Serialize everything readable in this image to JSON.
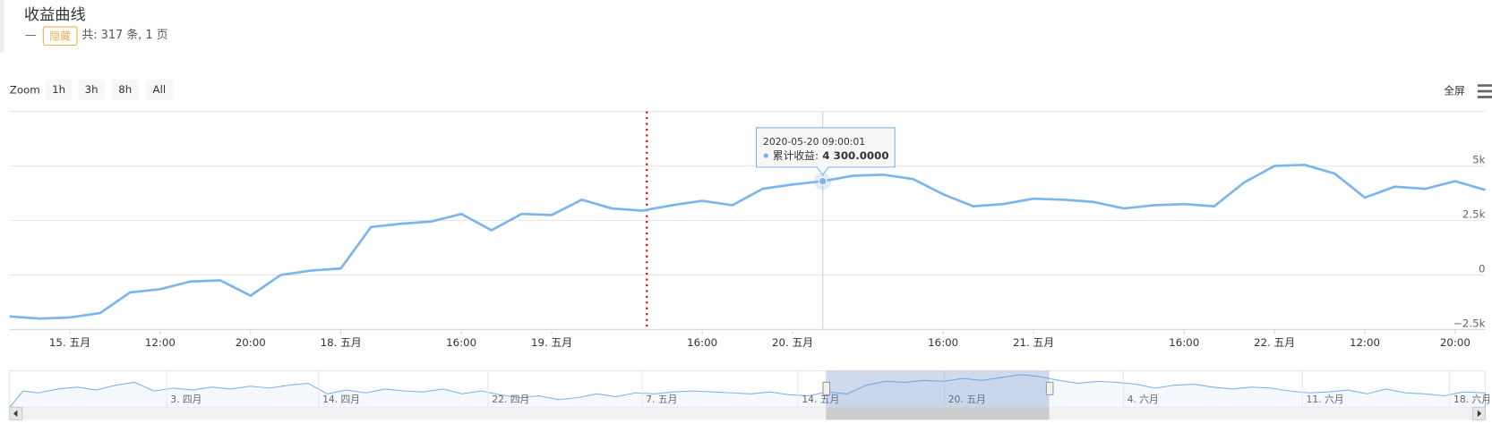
{
  "header": {
    "title": "收益曲线",
    "collapse": "—",
    "hide_button": "隐藏",
    "summary": "共: 317 条, 1 页"
  },
  "toolbar": {
    "zoom_label": "Zoom",
    "zoom_buttons": [
      "1h",
      "3h",
      "8h",
      "All"
    ],
    "fullscreen": "全屏"
  },
  "chart_data": {
    "type": "line",
    "categories": [
      null,
      null,
      "15. 五月",
      null,
      null,
      "12:00",
      null,
      null,
      "20:00",
      null,
      null,
      "18. 五月",
      null,
      null,
      null,
      "16:00",
      null,
      null,
      "19. 五月",
      null,
      null,
      null,
      null,
      "16:00",
      null,
      null,
      "20. 五月",
      null,
      null,
      null,
      null,
      "16:00",
      null,
      null,
      "21. 五月",
      null,
      null,
      null,
      null,
      "16:00",
      null,
      null,
      "22. 五月",
      null,
      null,
      "12:00",
      null,
      null,
      "20:00",
      null
    ],
    "series": [
      {
        "name": "累计收益",
        "color": "#7cb5ec",
        "values": [
          -1900,
          -2000,
          -1950,
          -1750,
          -800,
          -650,
          -300,
          -250,
          -950,
          0,
          200,
          300,
          2200,
          2350,
          2450,
          2800,
          2050,
          2800,
          2750,
          3450,
          3050,
          2950,
          3200,
          3400,
          3200,
          3950,
          4150,
          4300,
          4550,
          4600,
          4400,
          3700,
          3150,
          3250,
          3500,
          3450,
          3350,
          3050,
          3200,
          3250,
          3150,
          4250,
          5000,
          5050,
          4650,
          3550,
          4050,
          3950,
          4300,
          3900
        ]
      }
    ],
    "ylim": [
      -2500,
      7500
    ],
    "yticks": [
      {
        "value": -2500,
        "label": "−2.5k"
      },
      0,
      {
        "value": 2500,
        "label": "2.5k"
      },
      {
        "value": 5000,
        "label": "5k"
      }
    ],
    "grid": true,
    "tooltip": {
      "x": "2020-05-20 09:00:01",
      "point": 27,
      "separator": ":",
      "value_label": "4 300.0000"
    },
    "navigator_labels": [
      "3. 四月",
      "14. 四月",
      "22. 四月",
      "7. 五月",
      "14. 五月",
      "20. 五月",
      "4. 六月",
      "11. 六月",
      "18. 六月"
    ]
  }
}
